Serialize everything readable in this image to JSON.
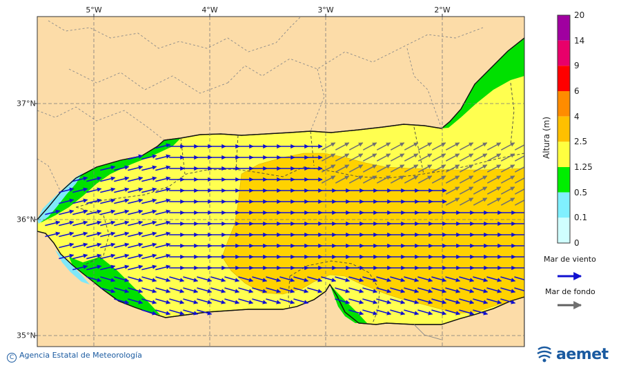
{
  "axes": {
    "longitude_labels": [
      "5°W",
      "4°W",
      "3°W",
      "2°W"
    ],
    "latitude_labels": [
      "37°N",
      "36°N",
      "35°N"
    ]
  },
  "legend": {
    "title": "Altura (m)",
    "ticks": [
      "20",
      "14",
      "9",
      "6",
      "4",
      "2.5",
      "1.25",
      "0.5",
      "0.1",
      "0"
    ],
    "colors": [
      "#a000a0",
      "#e8006a",
      "#ff0000",
      "#ff8c00",
      "#ffc000",
      "#ffff40",
      "#00ee00",
      "#80f0ff",
      "#d0ffff"
    ],
    "wind_sea_label": "Mar de viento",
    "swell_label": "Mar de fondo",
    "wind_sea_color": "#1010d0",
    "swell_color": "#606060"
  },
  "map_colors": {
    "land": "#fcdca8",
    "band_1_25_2_5": "#ffff50",
    "band_2_5_4": "#ffd200",
    "band_0_5_1_25": "#00e000",
    "band_0_1_0_5": "#80e8f8"
  },
  "footer": {
    "credit": "Agencia Estatal de Meteorología",
    "copyright_symbol": "C",
    "logo_text": "aemet"
  }
}
